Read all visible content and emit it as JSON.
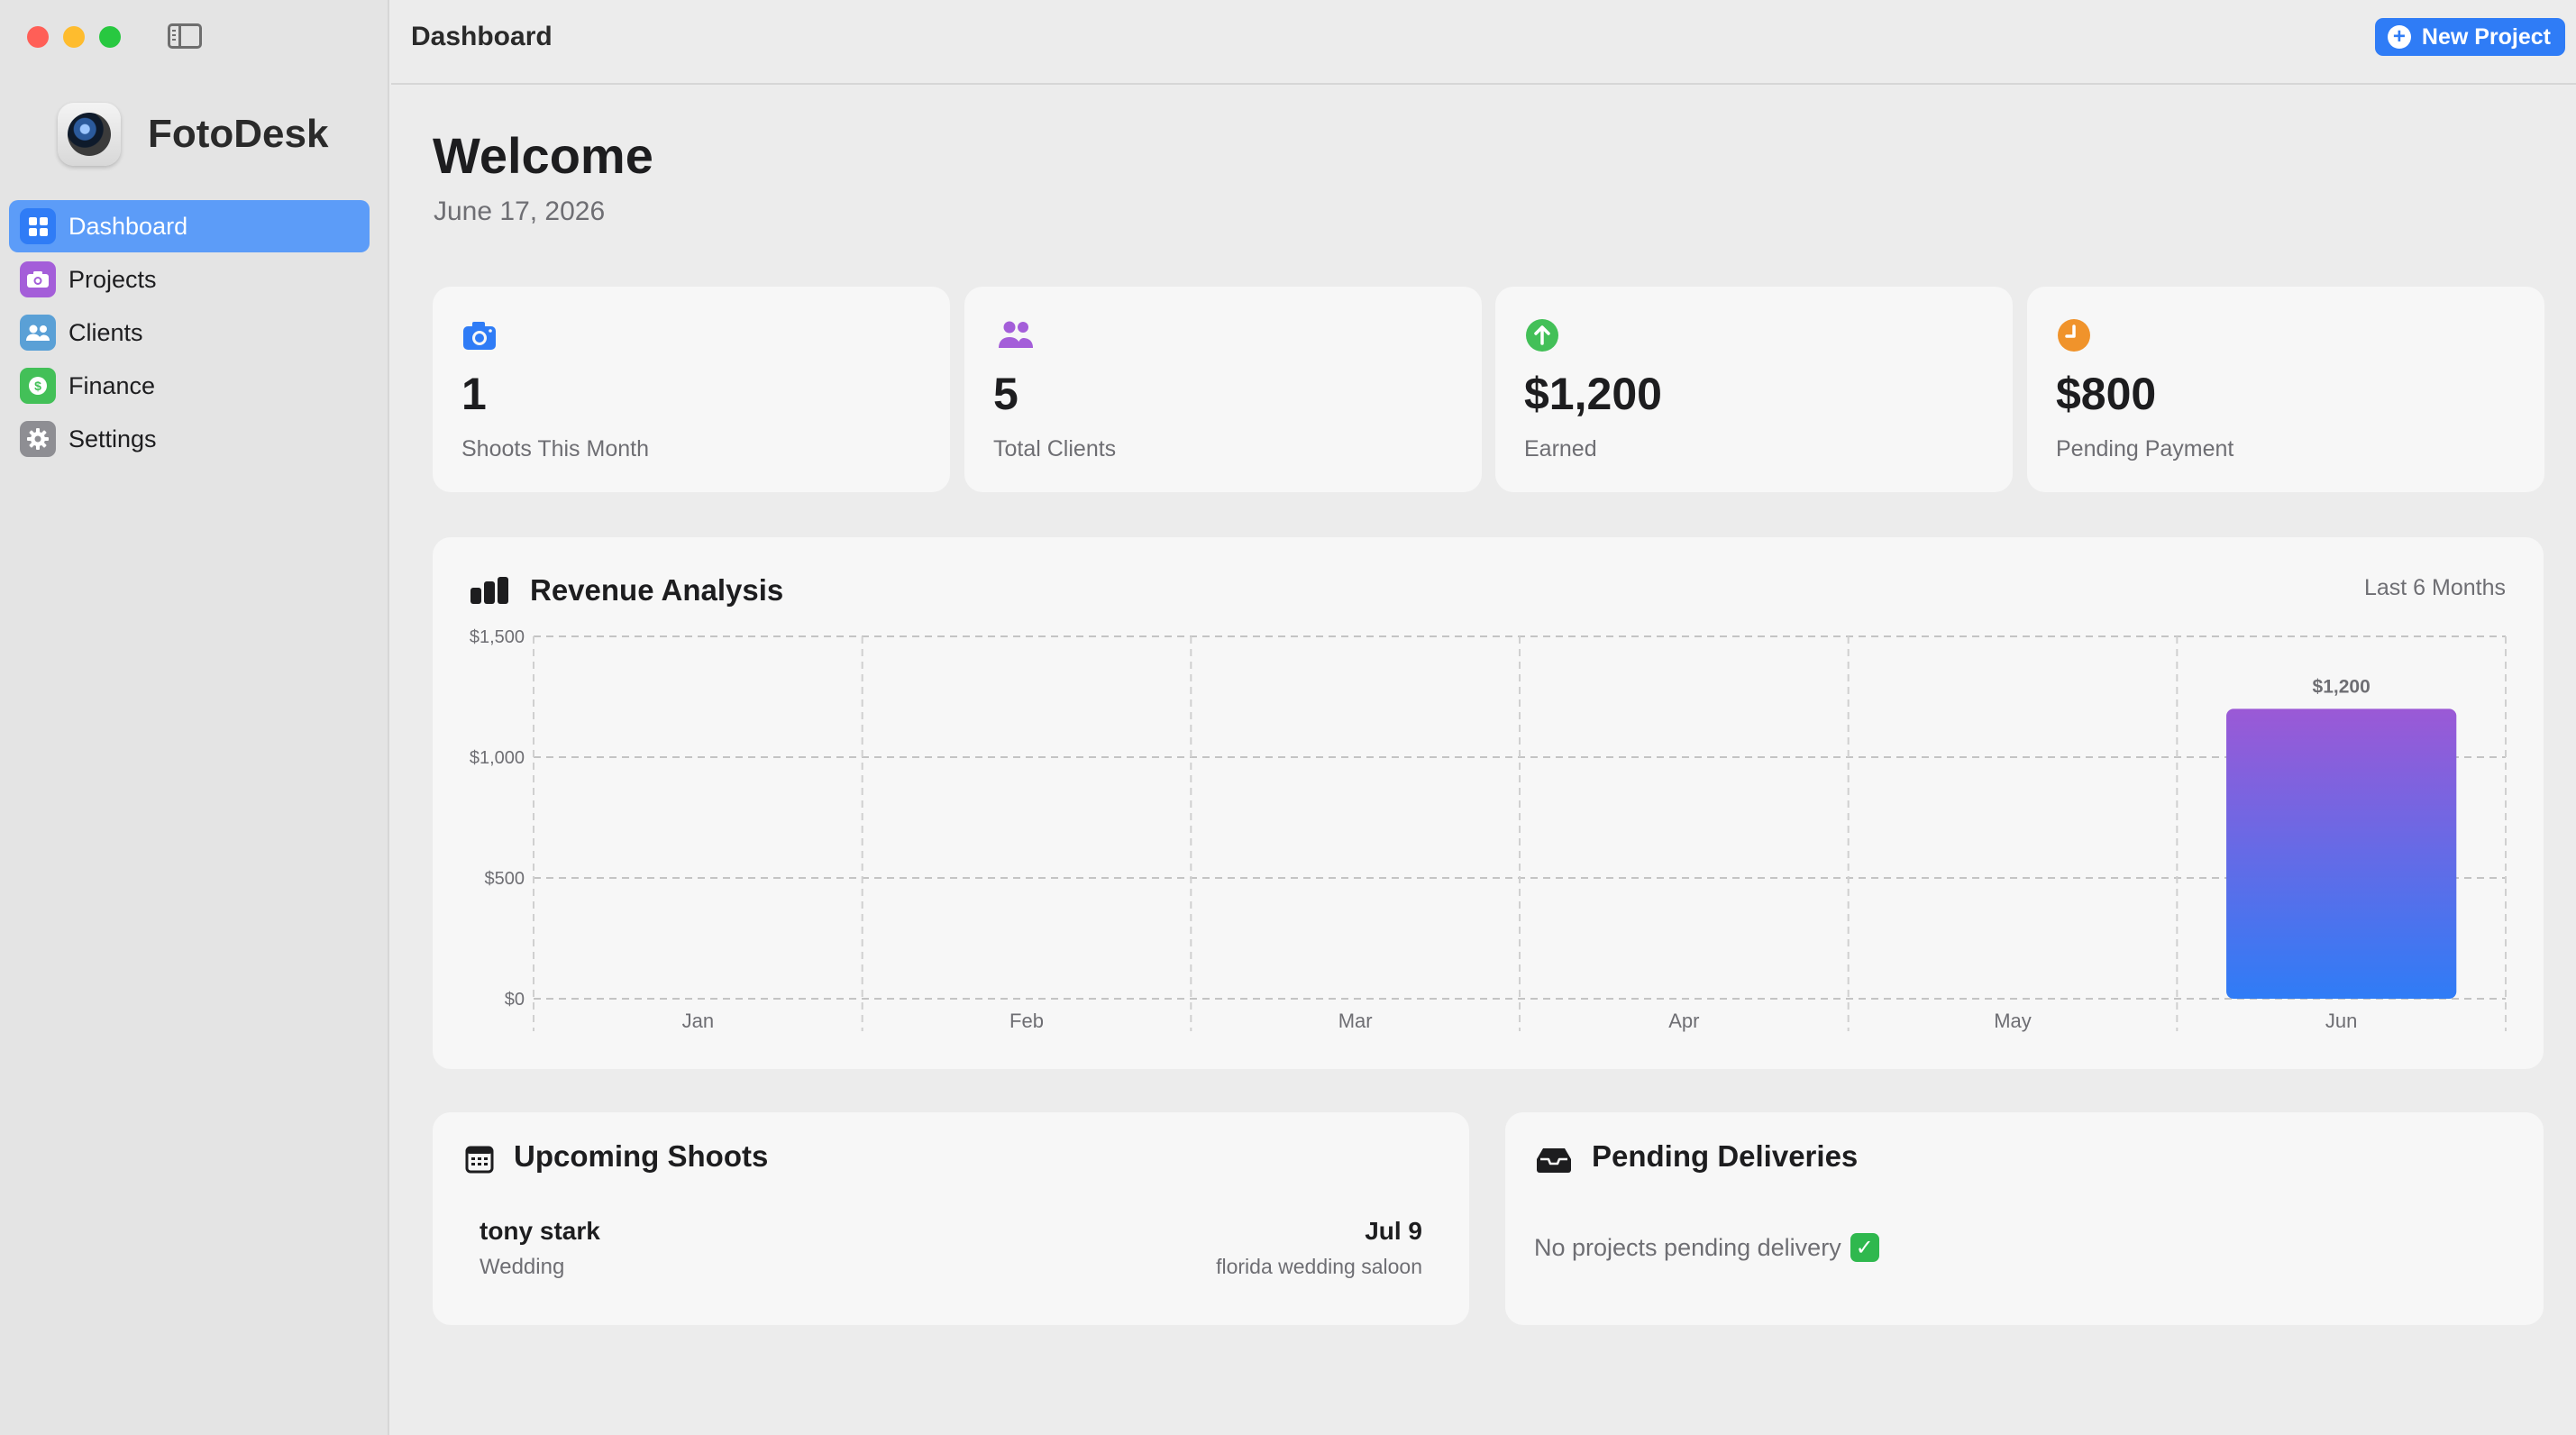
{
  "window": {
    "traffic_lights": [
      "close",
      "minimize",
      "maximize"
    ]
  },
  "sidebar": {
    "brand": "FotoDesk",
    "items": [
      {
        "label": "Dashboard",
        "icon": "grid-icon",
        "active": true
      },
      {
        "label": "Projects",
        "icon": "camera-icon"
      },
      {
        "label": "Clients",
        "icon": "people-icon"
      },
      {
        "label": "Finance",
        "icon": "dollar-icon"
      },
      {
        "label": "Settings",
        "icon": "gear-icon"
      }
    ]
  },
  "header": {
    "title": "Dashboard",
    "new_project_label": "New Project"
  },
  "main": {
    "welcome": "Welcome",
    "date": "June 17, 2026",
    "stats": [
      {
        "value": "1",
        "label": "Shoots This Month",
        "icon": "camera-icon",
        "color": "#2f7cf6"
      },
      {
        "value": "5",
        "label": "Total Clients",
        "icon": "people-icon",
        "color": "#a45ed9"
      },
      {
        "value": "$1,200",
        "label": "Earned",
        "icon": "arrow-up-circle-icon",
        "color": "#43c058"
      },
      {
        "value": "$800",
        "label": "Pending Payment",
        "icon": "clock-icon",
        "color": "#f0932b"
      }
    ],
    "revenue": {
      "title": "Revenue Analysis",
      "range": "Last 6 Months"
    },
    "upcoming": {
      "title": "Upcoming Shoots",
      "items": [
        {
          "name": "tony stark",
          "type": "Wedding",
          "date": "Jul 9",
          "location": "florida wedding saloon"
        }
      ]
    },
    "pending": {
      "title": "Pending Deliveries",
      "empty_message": "No projects pending delivery",
      "check_mark": "✓"
    }
  },
  "chart_data": {
    "type": "bar",
    "categories": [
      "Jan",
      "Feb",
      "Mar",
      "Apr",
      "May",
      "Jun"
    ],
    "values": [
      0,
      0,
      0,
      0,
      0,
      1200
    ],
    "ylim": [
      0,
      1500
    ],
    "yticks": [
      0,
      500,
      1000,
      1500
    ],
    "ytick_labels": [
      "$0",
      "$500",
      "$1,000",
      "$1,500"
    ],
    "data_labels": [
      "",
      "",
      "",
      "",
      "",
      "$1,200"
    ],
    "grid": true,
    "bar_gradient": [
      "#9b59d6",
      "#2f7cf6"
    ]
  }
}
